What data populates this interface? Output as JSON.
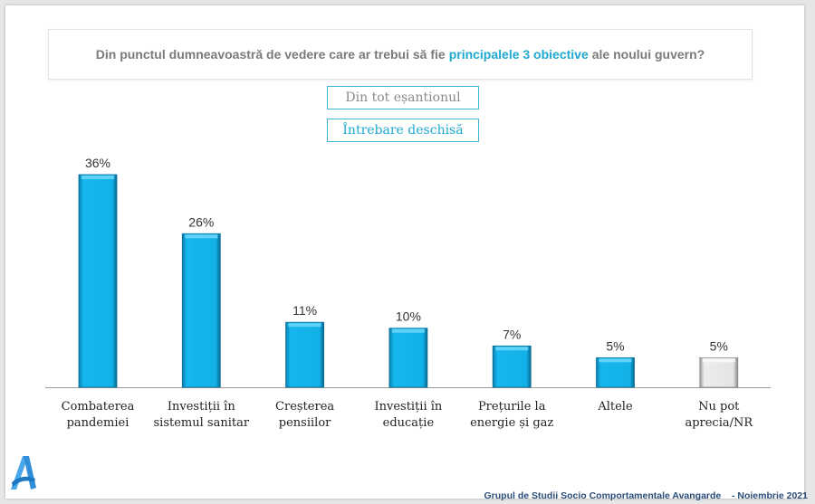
{
  "question": {
    "before": "Din punctul dumneavoastră de vedere care ar trebui să fie",
    "highlight": "principalele 3 obiective",
    "after": "ale noului guvern?"
  },
  "tags": {
    "sample": "Din tot eșantionul",
    "question_type": "Întrebare deschisă"
  },
  "colors": {
    "accent": "#1ea9cf",
    "bar_blue": "#12b1e8",
    "bar_gray": "#e4e4e4"
  },
  "chart_data": {
    "type": "bar",
    "title": "Din punctul dumneavoastră de vedere care ar trebui să fie principalele 3 obiective ale noului guvern?",
    "categories": [
      "Combaterea pandemiei",
      "Investiții în sistemul sanitar",
      "Creșterea pensiilor",
      "Investiții în educație",
      "Prețurile la energie și gaz",
      "Altele",
      "Nu pot aprecia/NR"
    ],
    "category_lines": [
      [
        "Combaterea",
        "pandemiei"
      ],
      [
        "Investiții în",
        "sistemul sanitar"
      ],
      [
        "Creșterea",
        "pensiilor"
      ],
      [
        "Investiții în",
        "educație"
      ],
      [
        "Prețurile la",
        "energie și gaz"
      ],
      [
        "Altele"
      ],
      [
        "Nu pot",
        "aprecia/NR"
      ]
    ],
    "values": [
      36,
      26,
      11,
      10,
      7,
      5,
      5
    ],
    "labels": [
      "36%",
      "26%",
      "11%",
      "10%",
      "7%",
      "5%",
      "5%"
    ],
    "unit": "%",
    "bar_colors": [
      "blue",
      "blue",
      "blue",
      "blue",
      "blue",
      "blue",
      "gray"
    ],
    "xlabel": "",
    "ylabel": "",
    "ylim": [
      0,
      36
    ],
    "grid": false,
    "legend": "none"
  },
  "footer": {
    "organization": "Grupul de Studii Socio Comportamentale Avangarde",
    "date": "- Noiembrie 2021"
  },
  "logo": {
    "name": "avangarde-logo",
    "letter": "A"
  }
}
